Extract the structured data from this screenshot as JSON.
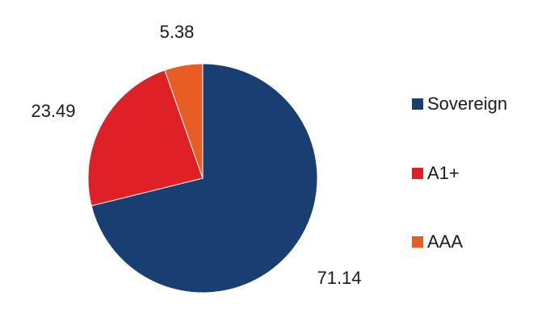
{
  "chart_data": {
    "type": "pie",
    "slices": [
      {
        "name": "Sovereign",
        "value": 71.14,
        "label": "71.14",
        "color": "#193e72"
      },
      {
        "name": "A1+",
        "value": 23.49,
        "label": "23.49",
        "color": "#e02027"
      },
      {
        "name": "AAA",
        "value": 5.38,
        "label": "5.38",
        "color": "#e85d24"
      }
    ],
    "start_angle_deg": 0,
    "direction": "clockwise",
    "legend_position": "right"
  }
}
